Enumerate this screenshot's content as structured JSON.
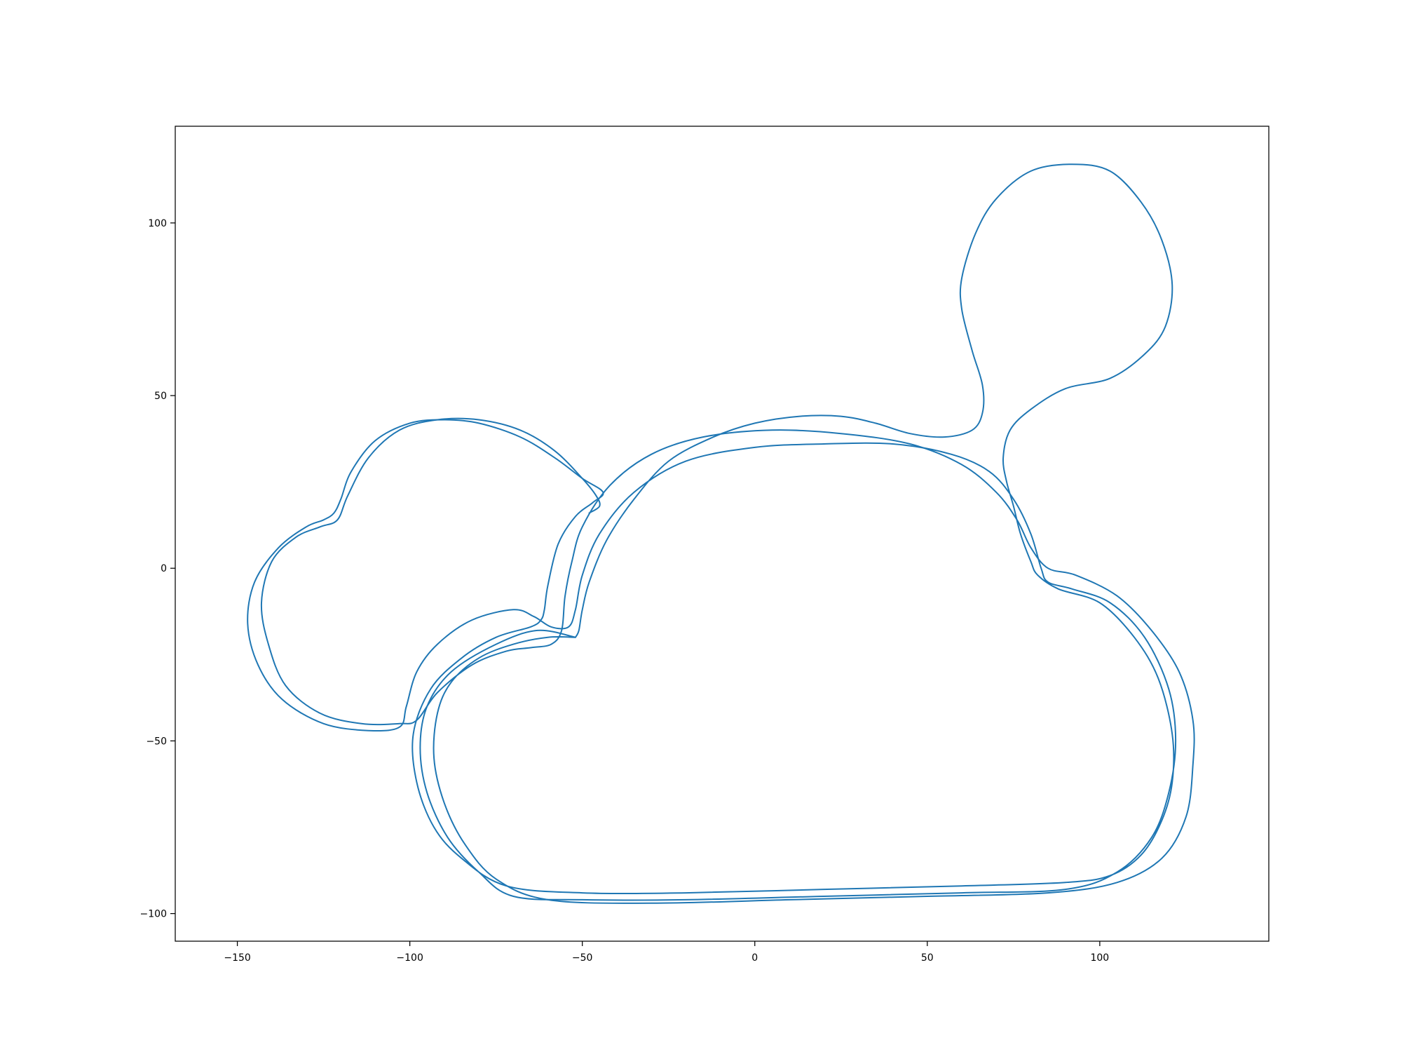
{
  "chart_data": {
    "type": "line",
    "title": "",
    "xlabel": "",
    "ylabel": "",
    "xlim": [
      -168,
      149
    ],
    "ylim": [
      -108,
      128
    ],
    "xticks": [
      -150,
      -100,
      -50,
      0,
      50,
      100
    ],
    "yticks": [
      -100,
      -50,
      0,
      50,
      100
    ],
    "xtick_labels": [
      "−150",
      "−100",
      "−50",
      "0",
      "50",
      "100"
    ],
    "ytick_labels": [
      "−100",
      "−50",
      "0",
      "50",
      "100"
    ],
    "grid": false,
    "legend": "none",
    "series": [
      {
        "color": "#1f77b4",
        "points": [
          [
            -52,
            -20
          ],
          [
            -63,
            -18
          ],
          [
            -75,
            -22
          ],
          [
            -88,
            -30
          ],
          [
            -95,
            -40
          ],
          [
            -97,
            -52
          ],
          [
            -95,
            -65
          ],
          [
            -89,
            -78
          ],
          [
            -80,
            -88
          ],
          [
            -70,
            -95
          ],
          [
            -50,
            -96
          ],
          [
            -20,
            -96
          ],
          [
            20,
            -95
          ],
          [
            60,
            -94
          ],
          [
            90,
            -93
          ],
          [
            105,
            -88
          ],
          [
            115,
            -78
          ],
          [
            120,
            -65
          ],
          [
            122,
            -50
          ],
          [
            120,
            -35
          ],
          [
            113,
            -20
          ],
          [
            103,
            -10
          ],
          [
            92,
            -6
          ],
          [
            85,
            -4
          ],
          [
            83,
            0
          ],
          [
            80,
            10
          ],
          [
            75,
            20
          ],
          [
            68,
            28
          ],
          [
            57,
            33
          ],
          [
            40,
            36
          ],
          [
            20,
            36
          ],
          [
            0,
            35
          ],
          [
            -20,
            31
          ],
          [
            -35,
            22
          ],
          [
            -45,
            10
          ],
          [
            -50,
            -2
          ],
          [
            -52,
            -12
          ],
          [
            -54,
            -17
          ],
          [
            -59,
            -17
          ],
          [
            -64,
            -14
          ],
          [
            -70,
            -12
          ],
          [
            -82,
            -15
          ],
          [
            -92,
            -22
          ],
          [
            -98,
            -30
          ],
          [
            -101,
            -40
          ],
          [
            -103,
            -46
          ],
          [
            -112,
            -47
          ],
          [
            -125,
            -45
          ],
          [
            -137,
            -38
          ],
          [
            -144,
            -28
          ],
          [
            -147,
            -16
          ],
          [
            -145,
            -4
          ],
          [
            -138,
            6
          ],
          [
            -130,
            12
          ],
          [
            -125,
            14
          ],
          [
            -122,
            16
          ],
          [
            -120,
            20
          ],
          [
            -117,
            28
          ],
          [
            -110,
            37
          ],
          [
            -100,
            42
          ],
          [
            -90,
            43
          ],
          [
            -80,
            42
          ],
          [
            -68,
            38
          ],
          [
            -58,
            32
          ],
          [
            -50,
            26
          ],
          [
            -44,
            22
          ],
          [
            -47,
            19
          ],
          [
            -52,
            15
          ],
          [
            -57,
            7
          ],
          [
            -60,
            -5
          ],
          [
            -61,
            -12
          ],
          [
            -62,
            -15
          ],
          [
            -65,
            -17
          ],
          [
            -75,
            -20
          ],
          [
            -85,
            -26
          ],
          [
            -94,
            -35
          ],
          [
            -99,
            -48
          ],
          [
            -98,
            -62
          ],
          [
            -93,
            -75
          ],
          [
            -85,
            -84
          ],
          [
            -72,
            -92
          ],
          [
            -50,
            -94
          ],
          [
            -20,
            -94
          ],
          [
            20,
            -93
          ],
          [
            60,
            -92
          ],
          [
            90,
            -91
          ],
          [
            103,
            -89
          ],
          [
            112,
            -83
          ],
          [
            118,
            -73
          ],
          [
            121,
            -62
          ],
          [
            121,
            -48
          ],
          [
            117,
            -32
          ],
          [
            110,
            -20
          ],
          [
            100,
            -10
          ],
          [
            88,
            -6
          ],
          [
            82,
            -2
          ],
          [
            80,
            2
          ],
          [
            77,
            10
          ],
          [
            75,
            18
          ],
          [
            73,
            25
          ],
          [
            72,
            32
          ],
          [
            74,
            40
          ],
          [
            80,
            46
          ],
          [
            90,
            52
          ],
          [
            103,
            55
          ],
          [
            113,
            62
          ],
          [
            119,
            70
          ],
          [
            121,
            82
          ],
          [
            118,
            95
          ],
          [
            112,
            106
          ],
          [
            103,
            115
          ],
          [
            92,
            117
          ],
          [
            80,
            115
          ],
          [
            70,
            107
          ],
          [
            64,
            97
          ],
          [
            60,
            84
          ],
          [
            60,
            75
          ],
          [
            63,
            63
          ],
          [
            66,
            53
          ],
          [
            66,
            45
          ],
          [
            63,
            40
          ],
          [
            55,
            38
          ],
          [
            45,
            39
          ],
          [
            35,
            42
          ],
          [
            25,
            44
          ],
          [
            13,
            44
          ],
          [
            0,
            42
          ],
          [
            -12,
            38
          ],
          [
            -25,
            31
          ],
          [
            -35,
            20
          ],
          [
            -43,
            8
          ],
          [
            -48,
            -4
          ],
          [
            -50,
            -12
          ],
          [
            -51,
            -18
          ],
          [
            -52,
            -20
          ]
        ]
      },
      {
        "color": "#1f77b4",
        "points": [
          [
            -52,
            -20
          ],
          [
            -60,
            -20
          ],
          [
            -70,
            -22
          ],
          [
            -80,
            -26
          ],
          [
            -88,
            -33
          ],
          [
            -92,
            -42
          ],
          [
            -93,
            -55
          ],
          [
            -90,
            -68
          ],
          [
            -84,
            -80
          ],
          [
            -75,
            -90
          ],
          [
            -60,
            -96
          ],
          [
            -30,
            -97
          ],
          [
            10,
            -96
          ],
          [
            50,
            -95
          ],
          [
            85,
            -94
          ],
          [
            105,
            -91
          ],
          [
            118,
            -84
          ],
          [
            125,
            -72
          ],
          [
            127,
            -57
          ],
          [
            127,
            -44
          ],
          [
            123,
            -30
          ],
          [
            115,
            -18
          ],
          [
            105,
            -8
          ],
          [
            93,
            -2
          ],
          [
            85,
            0
          ],
          [
            80,
            6
          ],
          [
            76,
            14
          ],
          [
            70,
            22
          ],
          [
            60,
            30
          ],
          [
            45,
            36
          ],
          [
            25,
            39
          ],
          [
            5,
            40
          ],
          [
            -15,
            38
          ],
          [
            -30,
            33
          ],
          [
            -42,
            24
          ],
          [
            -50,
            12
          ],
          [
            -53,
            2
          ],
          [
            -55,
            -8
          ],
          [
            -56,
            -18
          ],
          [
            -59,
            -22
          ],
          [
            -65,
            -23
          ],
          [
            -72,
            -24
          ],
          [
            -82,
            -28
          ],
          [
            -92,
            -36
          ],
          [
            -98,
            -44
          ],
          [
            -103,
            -45
          ],
          [
            -114,
            -45
          ],
          [
            -126,
            -42
          ],
          [
            -136,
            -34
          ],
          [
            -141,
            -22
          ],
          [
            -143,
            -10
          ],
          [
            -140,
            2
          ],
          [
            -133,
            9
          ],
          [
            -126,
            12
          ],
          [
            -121,
            14
          ],
          [
            -118,
            21
          ],
          [
            -112,
            32
          ],
          [
            -103,
            40
          ],
          [
            -92,
            43
          ],
          [
            -80,
            43
          ],
          [
            -68,
            40
          ],
          [
            -58,
            34
          ],
          [
            -50,
            26
          ],
          [
            -46,
            21
          ],
          [
            -45,
            18
          ],
          [
            -48,
            16
          ]
        ]
      }
    ]
  }
}
